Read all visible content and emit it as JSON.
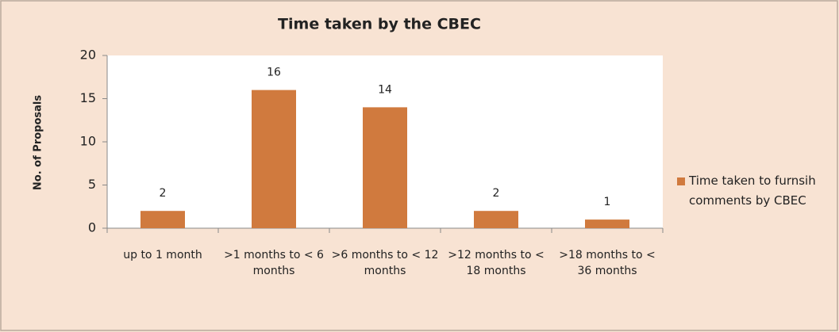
{
  "chart_data": {
    "type": "bar",
    "title": "Time taken by the CBEC",
    "y_label": "No. of Proposals",
    "categories": [
      "up to 1 month",
      ">1 months to < 6 months",
      ">6 months to < 12 months",
      ">12 months to < 18 months",
      ">18 months to < 36 months"
    ],
    "series": [
      {
        "name": "Time taken to furnsih comments by CBEC",
        "color": "#d07a3e",
        "values": [
          2,
          16,
          14,
          2,
          1
        ]
      }
    ],
    "ylim": [
      0,
      20
    ],
    "yticks": [
      0,
      5,
      10,
      15,
      20
    ],
    "legend": "right"
  }
}
